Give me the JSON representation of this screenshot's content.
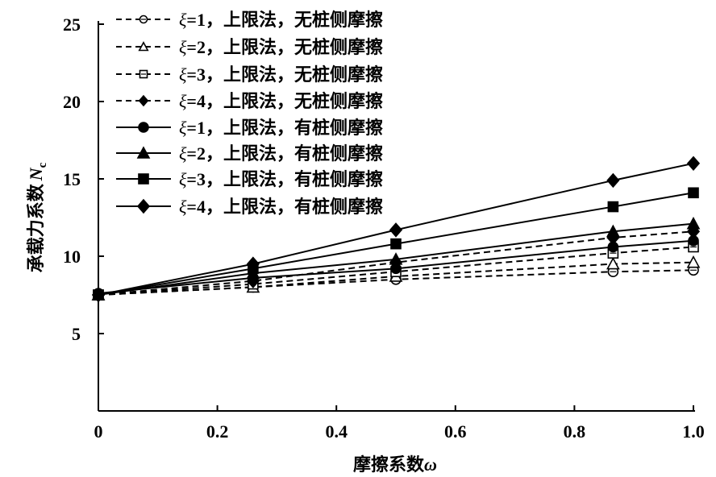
{
  "chart_data": {
    "type": "line",
    "xlabel": "摩擦系数",
    "xlabel_symbol": "ω",
    "ylabel": "承载力系数",
    "ylabel_symbol": "N",
    "ylabel_subscript": "c",
    "xlim": [
      0,
      1.0
    ],
    "ylim": [
      0,
      25
    ],
    "xticks": [
      0,
      0.2,
      0.4,
      0.6,
      0.8,
      1.0
    ],
    "xtick_labels": [
      "0",
      "0.2",
      "0.4",
      "0.6",
      "0.8",
      "1.0"
    ],
    "yticks": [
      5,
      10,
      15,
      20,
      25
    ],
    "ytick_labels": [
      "5",
      "10",
      "15",
      "20",
      "25"
    ],
    "grid": false,
    "legend_placement": "top-left",
    "x": [
      0,
      0.26,
      0.5,
      0.865,
      1.0
    ],
    "series": [
      {
        "name": "ξ=1，上限法，无桩侧摩擦",
        "line": "dashed",
        "marker": "circle-open",
        "values": [
          7.5,
          8.0,
          8.5,
          9.0,
          9.1
        ]
      },
      {
        "name": "ξ=2，上限法，无桩侧摩擦",
        "line": "dashed",
        "marker": "triangle-open",
        "values": [
          7.5,
          8.0,
          8.7,
          9.5,
          9.6
        ]
      },
      {
        "name": "ξ=3，上限法，无桩侧摩擦",
        "line": "dashed",
        "marker": "square-open",
        "values": [
          7.5,
          8.2,
          9.0,
          10.2,
          10.6
        ]
      },
      {
        "name": "ξ=4，上限法，无桩侧摩擦",
        "line": "dashed",
        "marker": "diamond-filled",
        "values": [
          7.5,
          8.4,
          9.6,
          11.2,
          11.6
        ]
      },
      {
        "name": "ξ=1，上限法，有桩侧摩擦",
        "line": "solid",
        "marker": "circle-filled",
        "values": [
          7.6,
          8.6,
          9.2,
          10.6,
          11.0
        ]
      },
      {
        "name": "ξ=2，上限法，有桩侧摩擦",
        "line": "solid",
        "marker": "triangle-filled",
        "values": [
          7.5,
          8.9,
          9.8,
          11.6,
          12.1
        ]
      },
      {
        "name": "ξ=3，上限法，有桩侧摩擦",
        "line": "solid",
        "marker": "square-filled",
        "values": [
          7.5,
          9.2,
          10.8,
          13.2,
          14.1
        ]
      },
      {
        "name": "ξ=4，上限法，有桩侧摩擦",
        "line": "solid",
        "marker": "diamond-filled",
        "values": [
          7.5,
          9.5,
          11.7,
          14.9,
          16.0
        ]
      }
    ],
    "colors": {
      "line": "#000000",
      "background": "#ffffff"
    }
  }
}
